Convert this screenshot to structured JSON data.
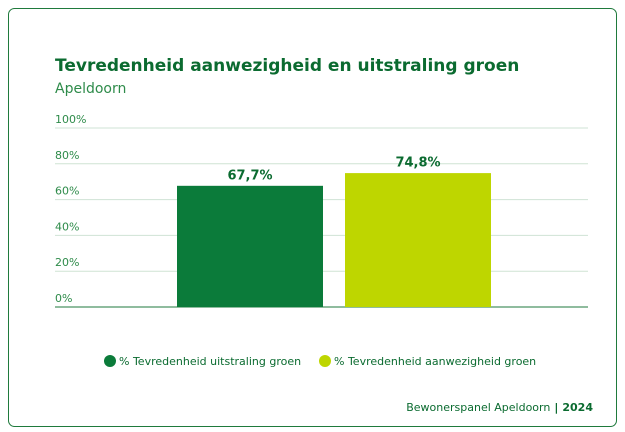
{
  "chart_data": {
    "type": "bar",
    "title": "Tevredenheid aanwezigheid en uitstraling groen",
    "subtitle": "Apeldoorn",
    "series": [
      {
        "name": "% Tevredenheid uitstraling groen",
        "color": "#0b7b3a",
        "values": [
          67.7
        ],
        "value_labels": [
          "67,7%"
        ]
      },
      {
        "name": "% Tevredenheid aanwezigheid groen",
        "color": "#bed600",
        "values": [
          74.8
        ],
        "value_labels": [
          "74,8%"
        ]
      }
    ],
    "ylim": [
      0,
      100
    ],
    "yticks": [
      {
        "value": 0,
        "label": "0%"
      },
      {
        "value": 20,
        "label": "20%"
      },
      {
        "value": 40,
        "label": "40%"
      },
      {
        "value": 60,
        "label": "60%"
      },
      {
        "value": 80,
        "label": "80%"
      },
      {
        "value": 100,
        "label": "100%"
      }
    ],
    "grid": true,
    "legend": "bottom",
    "footer": {
      "source": "Bewonerspanel Apeldoorn",
      "year": "2024"
    }
  }
}
